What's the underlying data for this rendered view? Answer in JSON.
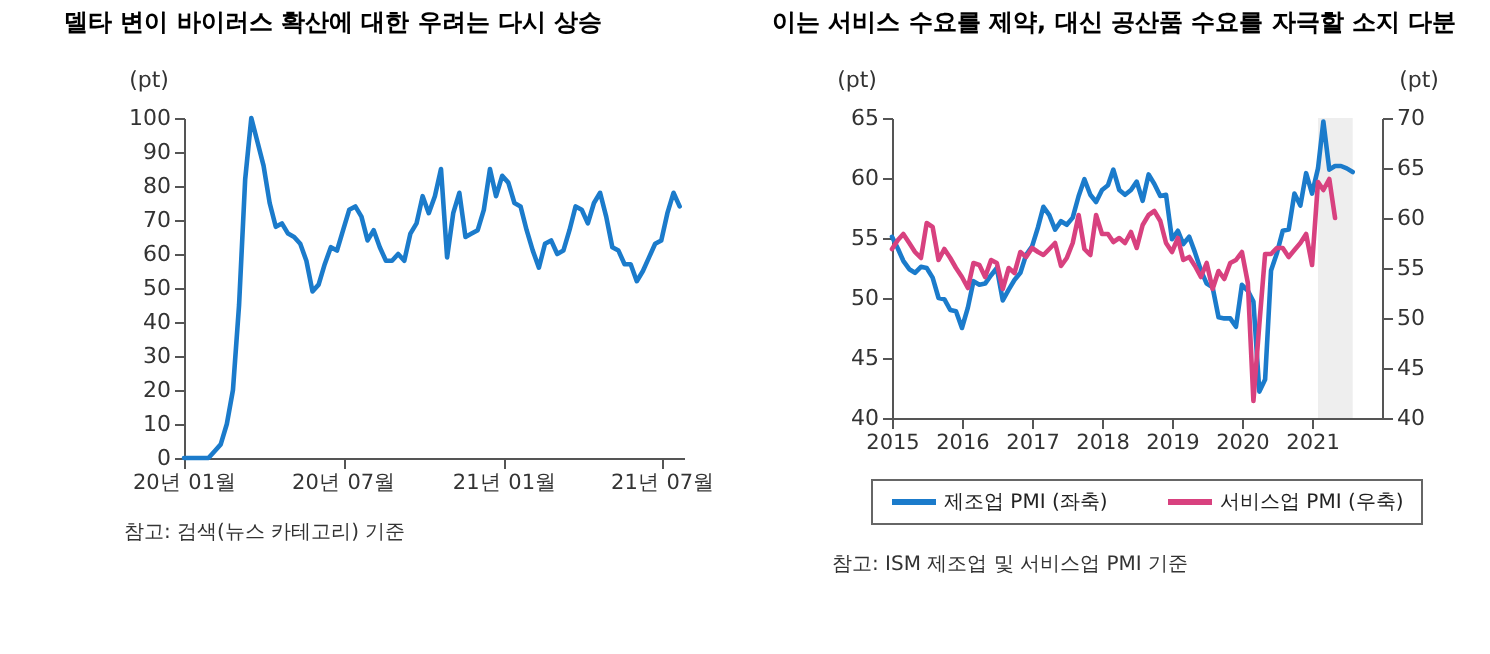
{
  "chart_data": [
    {
      "type": "line",
      "title": "델타 변이 바이러스 확산에 대한 우려는 다시 상승",
      "ylabel": "(pt)",
      "color": "#1b7bcb",
      "x": [
        "2020-01-01",
        "2020-01-08",
        "2020-01-15",
        "2020-01-22",
        "2020-01-29",
        "2020-02-05",
        "2020-02-12",
        "2020-02-19",
        "2020-02-26",
        "2020-03-04",
        "2020-03-11",
        "2020-03-18",
        "2020-03-25",
        "2020-04-01",
        "2020-04-08",
        "2020-04-15",
        "2020-04-22",
        "2020-04-29",
        "2020-05-06",
        "2020-05-13",
        "2020-05-20",
        "2020-05-27",
        "2020-06-03",
        "2020-06-10",
        "2020-06-17",
        "2020-06-24",
        "2020-07-01",
        "2020-07-08",
        "2020-07-15",
        "2020-07-22",
        "2020-07-29",
        "2020-08-05",
        "2020-08-12",
        "2020-08-19",
        "2020-08-26",
        "2020-09-02",
        "2020-09-09",
        "2020-09-16",
        "2020-09-23",
        "2020-09-30",
        "2020-10-07",
        "2020-10-14",
        "2020-10-21",
        "2020-10-28",
        "2020-11-04",
        "2020-11-11",
        "2020-11-18",
        "2020-11-25",
        "2020-12-02",
        "2020-12-09",
        "2020-12-16",
        "2020-12-23",
        "2020-12-30",
        "2021-01-06",
        "2021-01-13",
        "2021-01-20",
        "2021-01-27",
        "2021-02-03",
        "2021-02-10",
        "2021-02-17",
        "2021-02-24",
        "2021-03-03",
        "2021-03-10",
        "2021-03-17",
        "2021-03-24",
        "2021-03-31",
        "2021-04-07",
        "2021-04-14",
        "2021-04-21",
        "2021-04-28",
        "2021-05-05",
        "2021-05-12",
        "2021-05-19",
        "2021-05-26",
        "2021-06-02",
        "2021-06-09",
        "2021-06-16",
        "2021-06-23",
        "2021-06-30",
        "2021-07-07",
        "2021-07-14",
        "2021-07-21"
      ],
      "values": [
        0,
        0,
        0,
        0,
        0,
        2,
        4,
        10,
        20,
        45,
        82,
        100,
        93,
        86,
        75,
        68,
        69,
        66,
        65,
        63,
        58,
        49,
        51,
        57,
        62,
        61,
        67,
        73,
        74,
        71,
        64,
        67,
        62,
        58,
        58,
        60,
        58,
        66,
        69,
        77,
        72,
        77,
        85,
        59,
        72,
        78,
        65,
        66,
        67,
        73,
        85,
        77,
        83,
        81,
        75,
        74,
        67,
        61,
        56,
        63,
        64,
        60,
        61,
        67,
        74,
        73,
        69,
        75,
        78,
        71,
        62,
        61,
        57,
        57,
        52,
        55,
        59,
        63,
        64,
        72,
        78,
        74
      ],
      "xlim": [
        "2020-01-01",
        "2021-07-26"
      ],
      "xticks": [
        {
          "value": "2020-01-01",
          "label": "20년 01월"
        },
        {
          "value": "2020-07-01",
          "label": "20년 07월"
        },
        {
          "value": "2021-01-01",
          "label": "21년 01월"
        },
        {
          "value": "2021-07-01",
          "label": "21년 07월"
        }
      ],
      "ylim": [
        0,
        100
      ],
      "yticks": [
        0,
        10,
        20,
        30,
        40,
        50,
        60,
        70,
        80,
        90,
        100
      ],
      "annotations": [
        "참고: 검색(뉴스 카테고리) 기준"
      ]
    },
    {
      "type": "line",
      "title": "이는 서비스 수요를 제약, 대신 공산품 수요를 자극할 소지 다분",
      "ylabel": "(pt)",
      "y2label": "(pt)",
      "legend": "bottom",
      "x": [
        "2015-01",
        "2015-02",
        "2015-03",
        "2015-04",
        "2015-05",
        "2015-06",
        "2015-07",
        "2015-08",
        "2015-09",
        "2015-10",
        "2015-11",
        "2015-12",
        "2016-01",
        "2016-02",
        "2016-03",
        "2016-04",
        "2016-05",
        "2016-06",
        "2016-07",
        "2016-08",
        "2016-09",
        "2016-10",
        "2016-11",
        "2016-12",
        "2017-01",
        "2017-02",
        "2017-03",
        "2017-04",
        "2017-05",
        "2017-06",
        "2017-07",
        "2017-08",
        "2017-09",
        "2017-10",
        "2017-11",
        "2017-12",
        "2018-01",
        "2018-02",
        "2018-03",
        "2018-04",
        "2018-05",
        "2018-06",
        "2018-07",
        "2018-08",
        "2018-09",
        "2018-10",
        "2018-11",
        "2018-12",
        "2019-01",
        "2019-02",
        "2019-03",
        "2019-04",
        "2019-05",
        "2019-06",
        "2019-07",
        "2019-08",
        "2019-09",
        "2019-10",
        "2019-11",
        "2019-12",
        "2020-01",
        "2020-02",
        "2020-03",
        "2020-04",
        "2020-05",
        "2020-06",
        "2020-07",
        "2020-08",
        "2020-09",
        "2020-10",
        "2020-11",
        "2020-12",
        "2021-01",
        "2021-02",
        "2021-03",
        "2021-04",
        "2021-05",
        "2021-06",
        "2021-07",
        "2021-08"
      ],
      "series": [
        {
          "name": "제조업 PMI (좌축)",
          "color": "#1b7bcb",
          "axis": "y",
          "values": [
            55.1,
            54.1,
            53.1,
            52.4,
            52.1,
            52.6,
            52.5,
            51.7,
            50.0,
            49.9,
            49.0,
            48.9,
            47.5,
            49.2,
            51.4,
            51.1,
            51.2,
            51.9,
            52.5,
            49.8,
            50.7,
            51.5,
            52.1,
            53.6,
            54.3,
            55.9,
            57.6,
            56.9,
            55.7,
            56.4,
            56.1,
            56.7,
            58.5,
            59.9,
            58.6,
            58.0,
            59.0,
            59.4,
            60.7,
            59.0,
            58.6,
            59.0,
            59.7,
            58.1,
            60.3,
            59.5,
            58.5,
            58.6,
            54.9,
            55.6,
            54.5,
            55.1,
            53.8,
            52.3,
            51.2,
            50.9,
            48.4,
            48.3,
            48.3,
            47.6,
            51.1,
            50.6,
            49.7,
            42.2,
            43.2,
            52.3,
            53.7,
            55.6,
            55.7,
            58.7,
            57.7,
            60.4,
            58.7,
            60.8,
            64.7,
            60.7,
            61.0,
            61.0,
            60.8,
            60.5
          ]
        },
        {
          "name": "서비스업 PMI (우축)",
          "color": "#d8417f",
          "axis": "y2",
          "values": [
            56.9,
            57.8,
            58.4,
            57.5,
            56.6,
            56.0,
            59.5,
            59.1,
            55.8,
            56.9,
            56.0,
            55.0,
            54.1,
            53.0,
            55.5,
            55.3,
            54.1,
            55.8,
            55.5,
            52.9,
            55.0,
            54.5,
            56.6,
            56.1,
            57.0,
            56.6,
            56.3,
            56.9,
            57.5,
            55.2,
            56.0,
            57.5,
            60.3,
            56.9,
            56.3,
            60.3,
            58.4,
            58.4,
            57.6,
            58.0,
            57.5,
            58.6,
            57.0,
            59.3,
            60.3,
            60.7,
            59.7,
            57.5,
            56.6,
            58.0,
            55.8,
            56.1,
            55.2,
            54.1,
            55.5,
            52.9,
            54.7,
            53.9,
            55.5,
            55.8,
            56.6,
            53.5,
            41.7,
            49.4,
            56.4,
            56.4,
            57.0,
            57.0,
            56.1,
            56.8,
            57.5,
            58.4,
            55.3,
            63.6,
            62.8,
            63.9,
            60.0,
            null,
            null,
            null
          ]
        }
      ],
      "xlim": [
        "2015-01",
        "2022-01"
      ],
      "xticks": [
        {
          "value": "2015",
          "label": "2015"
        },
        {
          "value": "2016",
          "label": "2016"
        },
        {
          "value": "2017",
          "label": "2017"
        },
        {
          "value": "2018",
          "label": "2018"
        },
        {
          "value": "2019",
          "label": "2019"
        },
        {
          "value": "2020",
          "label": "2020"
        },
        {
          "value": "2021",
          "label": "2021"
        }
      ],
      "ylim": [
        40,
        65
      ],
      "yticks": [
        40,
        45,
        50,
        55,
        60,
        65
      ],
      "y2lim": [
        40,
        70
      ],
      "y2ticks": [
        40,
        45,
        50,
        55,
        60,
        65,
        70
      ],
      "bands": [
        {
          "axis": "x",
          "from": "2021-02",
          "to": "2021-08",
          "color": "#eeeeee"
        }
      ],
      "annotations": [
        "참고: ISM 제조업 및 서비스업 PMI 기준"
      ]
    }
  ]
}
